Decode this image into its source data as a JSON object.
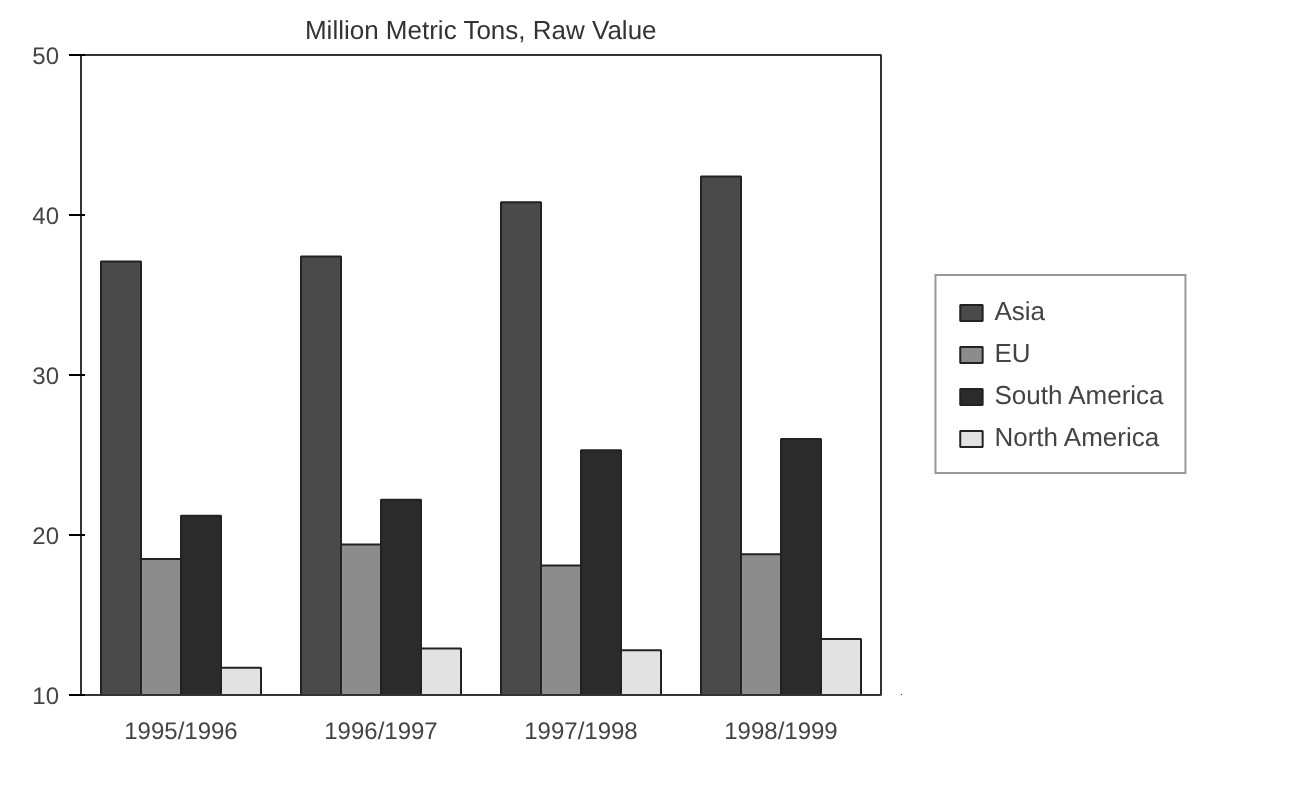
{
  "chart_data": {
    "type": "bar",
    "title": "Million Metric Tons, Raw Value",
    "categories": [
      "1995/1996",
      "1996/1997",
      "1997/1998",
      "1998/1999"
    ],
    "series": [
      {
        "name": "Asia",
        "color": "#4a4a4a",
        "values": [
          37.1,
          37.4,
          40.8,
          42.4
        ]
      },
      {
        "name": "EU",
        "color": "#8c8c8c",
        "values": [
          18.5,
          19.4,
          18.1,
          18.8
        ]
      },
      {
        "name": "South America",
        "color": "#2b2b2b",
        "values": [
          21.2,
          22.2,
          25.3,
          26.0
        ]
      },
      {
        "name": "North America",
        "color": "#e2e2e2",
        "values": [
          11.7,
          12.9,
          12.8,
          13.5
        ]
      }
    ],
    "ylim": [
      10,
      50
    ],
    "yticks": [
      10,
      20,
      30,
      40,
      50
    ],
    "grid": false,
    "legend": "right"
  }
}
